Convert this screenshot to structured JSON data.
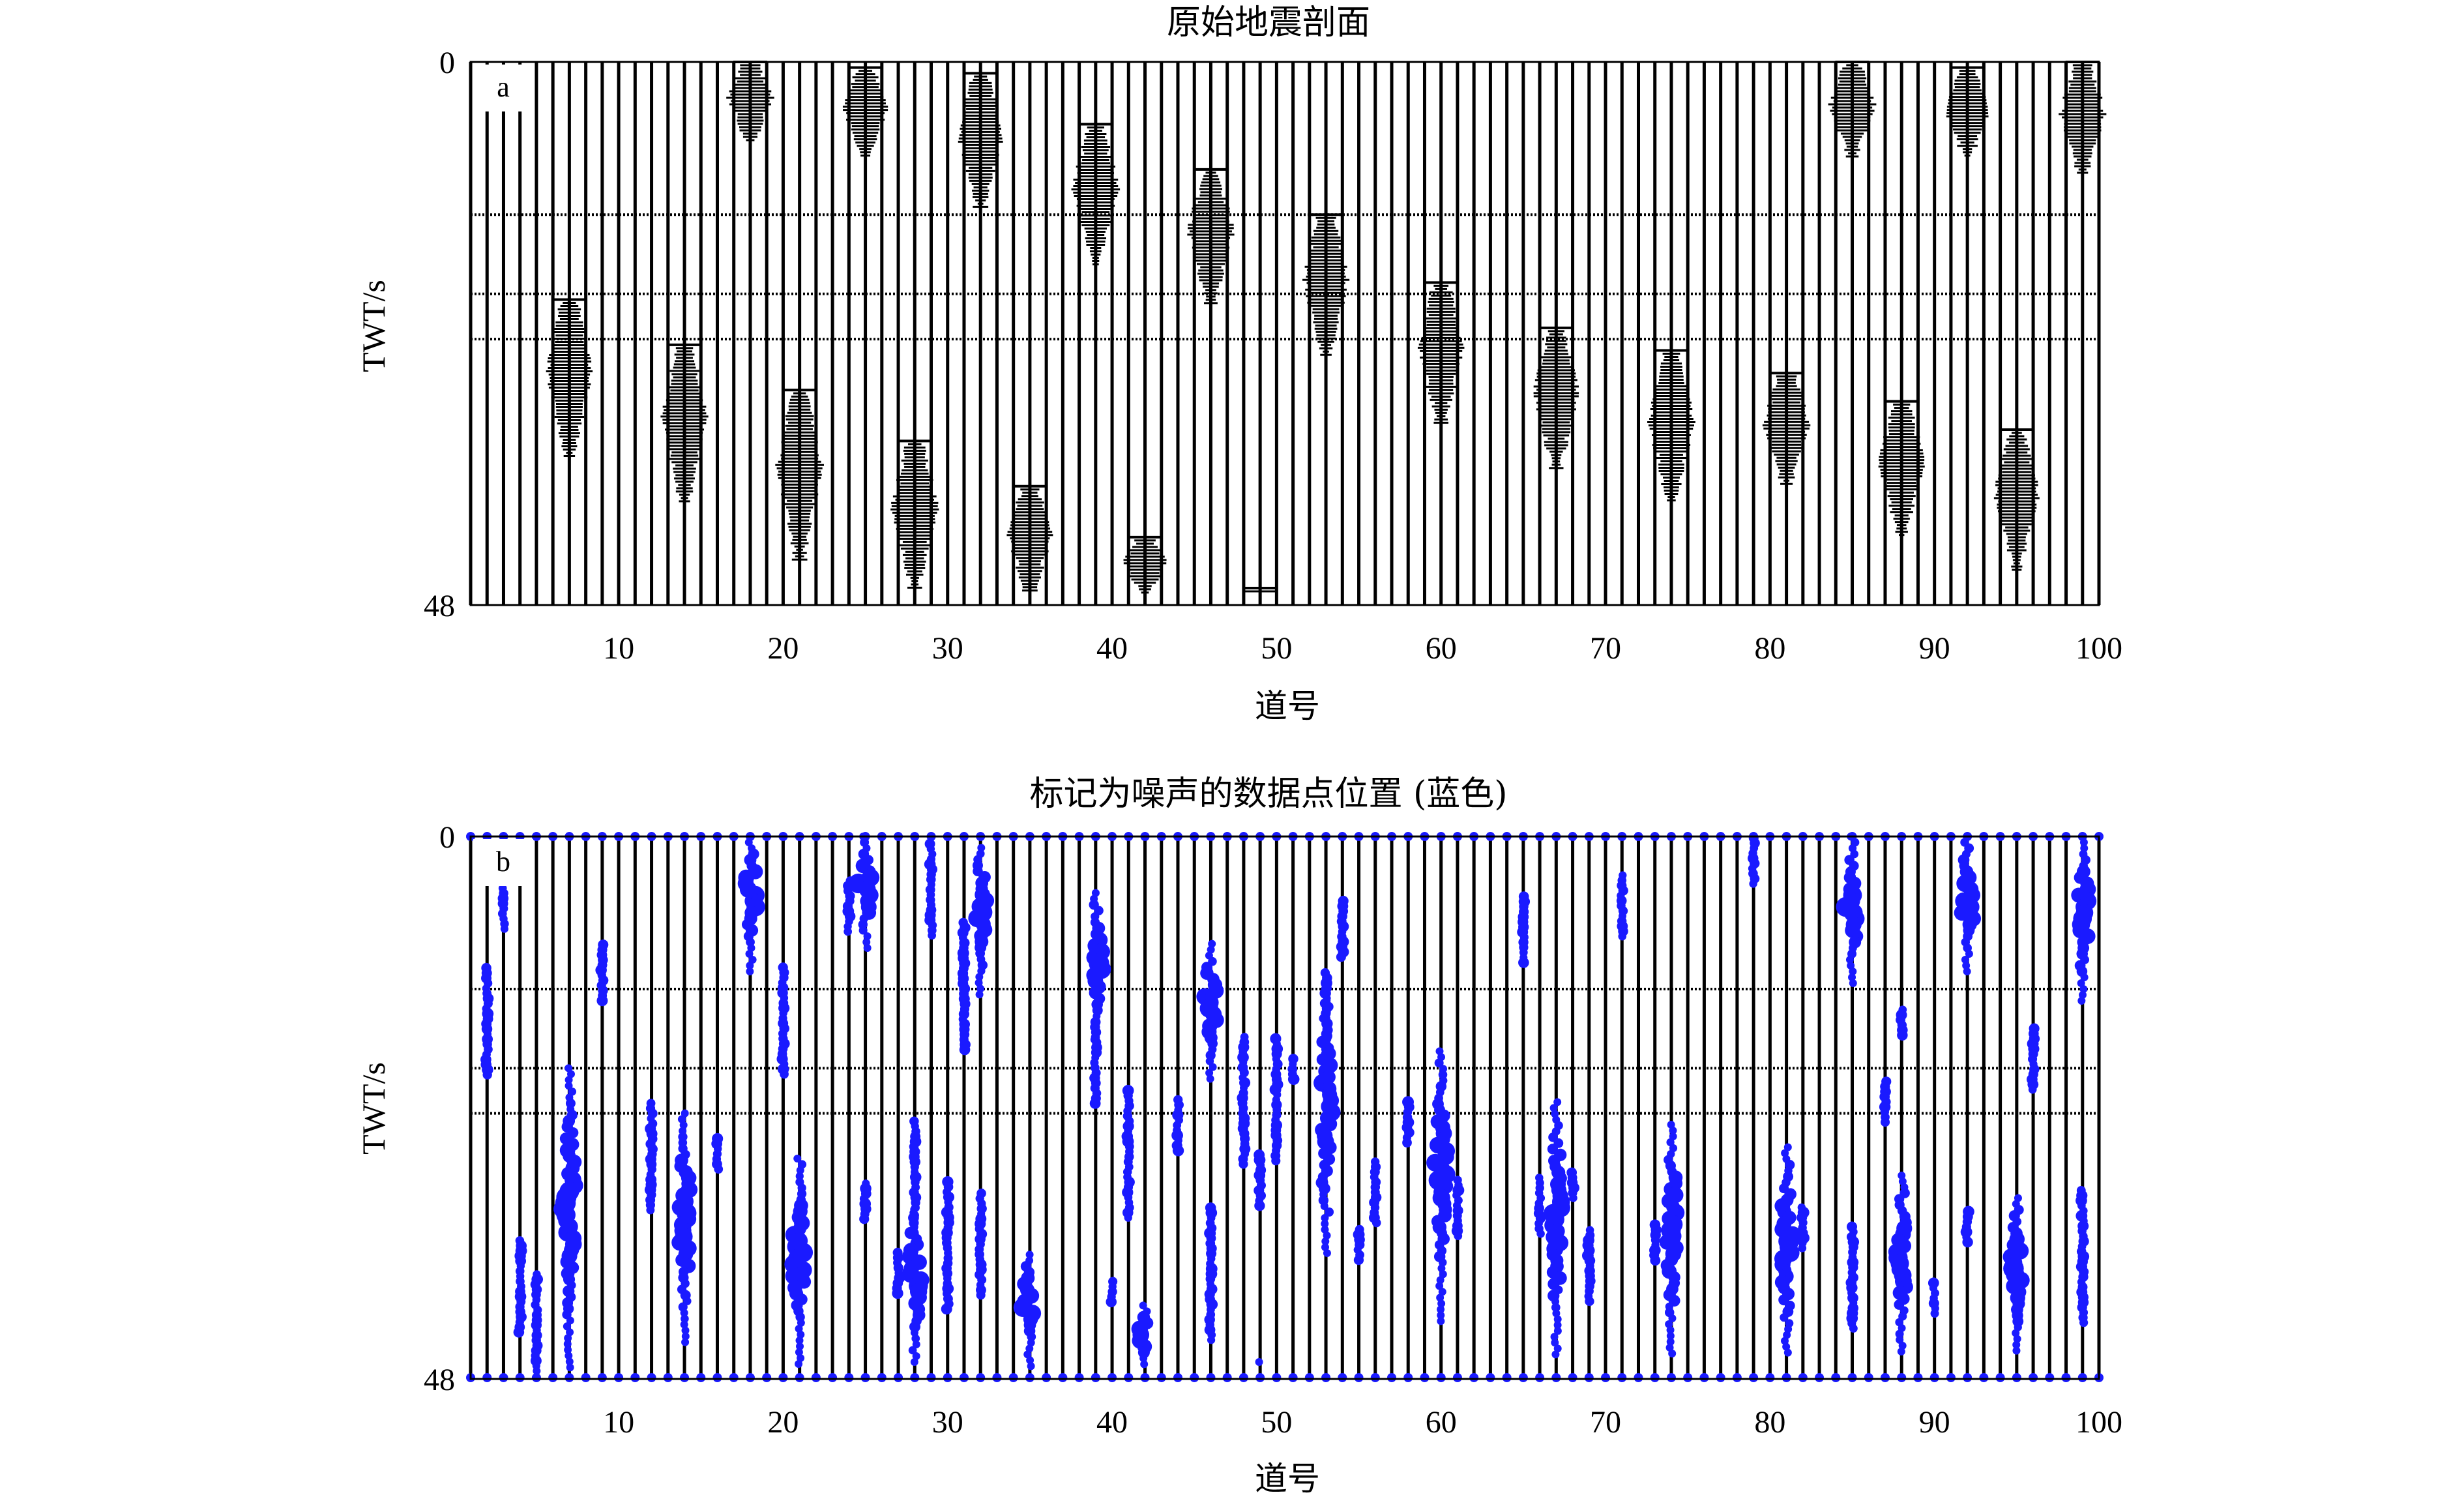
{
  "colors": {
    "trace": "#000000",
    "noise_marker": "#1a1aff",
    "background": "#ffffff"
  },
  "chart_data": [
    {
      "type": "scatter",
      "panel": "a",
      "title": "原始地震剖面",
      "xlabel": "道号",
      "ylabel": "TWT/s",
      "xlim": [
        1,
        100
      ],
      "ylim": [
        48,
        0
      ],
      "x_ticks": [
        10,
        20,
        30,
        40,
        50,
        60,
        70,
        80,
        90,
        100
      ],
      "y_ticks": [
        0,
        48
      ],
      "trace_count": 100,
      "horizon_times": [
        13.5,
        20.5,
        24.5
      ],
      "events": [
        {
          "trace": 7,
          "start": 21,
          "end": 35
        },
        {
          "trace": 14,
          "start": 25,
          "end": 39
        },
        {
          "trace": 18,
          "start": 0,
          "end": 7
        },
        {
          "trace": 21,
          "start": 29,
          "end": 44
        },
        {
          "trace": 25,
          "start": 0.5,
          "end": 8.5
        },
        {
          "trace": 28,
          "start": 33.5,
          "end": 46.5
        },
        {
          "trace": 32,
          "start": 1,
          "end": 13
        },
        {
          "trace": 35,
          "start": 37.5,
          "end": 47
        },
        {
          "trace": 39,
          "start": 5.5,
          "end": 18
        },
        {
          "trace": 42,
          "start": 42,
          "end": 47
        },
        {
          "trace": 46,
          "start": 9.5,
          "end": 21.5
        },
        {
          "trace": 49,
          "start": 46.5,
          "end": 47
        },
        {
          "trace": 53,
          "start": 13.5,
          "end": 26
        },
        {
          "trace": 60,
          "start": 19.5,
          "end": 32
        },
        {
          "trace": 67,
          "start": 23.5,
          "end": 36
        },
        {
          "trace": 74,
          "start": 25.5,
          "end": 39
        },
        {
          "trace": 81,
          "start": 27.5,
          "end": 37.5
        },
        {
          "trace": 85,
          "start": 0,
          "end": 8.5
        },
        {
          "trace": 88,
          "start": 30,
          "end": 42
        },
        {
          "trace": 92,
          "start": 0.5,
          "end": 8.5
        },
        {
          "trace": 95,
          "start": 32.5,
          "end": 45
        },
        {
          "trace": 99,
          "start": 0,
          "end": 10
        }
      ]
    },
    {
      "type": "scatter",
      "panel": "b",
      "title": "标记为噪声的数据点位置 (蓝色)",
      "xlabel": "道号",
      "ylabel": "TWT/s",
      "xlim": [
        1,
        100
      ],
      "ylim": [
        48,
        0
      ],
      "x_ticks": [
        10,
        20,
        30,
        40,
        50,
        60,
        70,
        80,
        90,
        100
      ],
      "y_ticks": [
        0,
        48
      ],
      "trace_count": 100,
      "horizon_times": [
        13.5,
        20.5,
        24.5
      ],
      "events": [
        {
          "trace": 7,
          "start": 20.5,
          "end": 47
        },
        {
          "trace": 14,
          "start": 24.5,
          "end": 45
        },
        {
          "trace": 18,
          "start": 0,
          "end": 12
        },
        {
          "trace": 21,
          "start": 28.5,
          "end": 47
        },
        {
          "trace": 25,
          "start": 0,
          "end": 10
        },
        {
          "trace": 28,
          "start": 33,
          "end": 47
        },
        {
          "trace": 32,
          "start": 1,
          "end": 14
        },
        {
          "trace": 35,
          "start": 37,
          "end": 47
        },
        {
          "trace": 39,
          "start": 5,
          "end": 19
        },
        {
          "trace": 42,
          "start": 41.5,
          "end": 47
        },
        {
          "trace": 46,
          "start": 9.5,
          "end": 21.5
        },
        {
          "trace": 49,
          "start": 46.5,
          "end": 47
        },
        {
          "trace": 53,
          "start": 13.5,
          "end": 37
        },
        {
          "trace": 60,
          "start": 19,
          "end": 43
        },
        {
          "trace": 67,
          "start": 23.5,
          "end": 46
        },
        {
          "trace": 74,
          "start": 25.5,
          "end": 46
        },
        {
          "trace": 81,
          "start": 27.5,
          "end": 46
        },
        {
          "trace": 85,
          "start": 0,
          "end": 13
        },
        {
          "trace": 88,
          "start": 30,
          "end": 46
        },
        {
          "trace": 92,
          "start": 0,
          "end": 12
        },
        {
          "trace": 95,
          "start": 32,
          "end": 46
        },
        {
          "trace": 99,
          "start": 0,
          "end": 15
        }
      ]
    }
  ]
}
